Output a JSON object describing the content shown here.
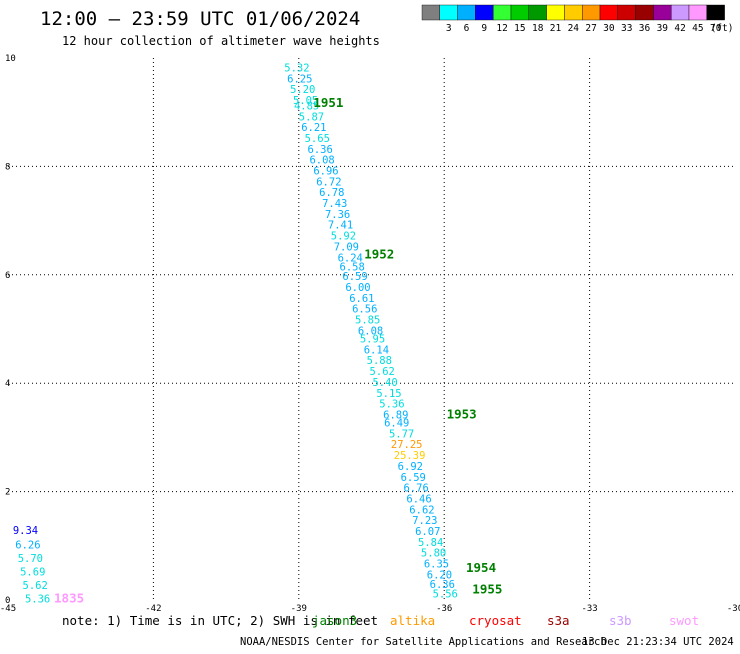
{
  "header": {
    "title": "12:00 — 23:59 UTC 01/06/2024",
    "subtitle": "12 hour collection of altimeter wave heights"
  },
  "color_scale": {
    "unit_label": "(ft)",
    "bins": [
      {
        "label": "",
        "color": "#7f7f7f"
      },
      {
        "label": "3",
        "color": "#00ffff"
      },
      {
        "label": "6",
        "color": "#00b0ff"
      },
      {
        "label": "9",
        "color": "#0000ff"
      },
      {
        "label": "12",
        "color": "#33ff33"
      },
      {
        "label": "15",
        "color": "#00cc00"
      },
      {
        "label": "18",
        "color": "#009900"
      },
      {
        "label": "21",
        "color": "#ffff00"
      },
      {
        "label": "24",
        "color": "#ffcc00"
      },
      {
        "label": "27",
        "color": "#ff9900"
      },
      {
        "label": "30",
        "color": "#ff0000"
      },
      {
        "label": "33",
        "color": "#cc0000"
      },
      {
        "label": "36",
        "color": "#990000"
      },
      {
        "label": "39",
        "color": "#990099"
      },
      {
        "label": "42",
        "color": "#cc99ff"
      },
      {
        "label": "45",
        "color": "#ff99ff"
      },
      {
        "label": "70",
        "color": "#000000"
      }
    ]
  },
  "chart_data": {
    "type": "scatter",
    "xlim": [
      -45,
      -30
    ],
    "ylim": [
      0,
      10
    ],
    "x_ticks": [
      {
        "value": -45,
        "label": "-45"
      },
      {
        "value": -42,
        "label": "-42"
      },
      {
        "value": -39,
        "label": "-39"
      },
      {
        "value": -36,
        "label": "-36"
      },
      {
        "value": -33,
        "label": "-33"
      },
      {
        "value": -30,
        "label": "-30"
      }
    ],
    "y_ticks": [
      {
        "value": 0,
        "label": "0"
      },
      {
        "value": 2,
        "label": "2"
      },
      {
        "value": 4,
        "label": "4"
      },
      {
        "value": 6,
        "label": "6"
      },
      {
        "value": 8,
        "label": "8"
      },
      {
        "value": 10,
        "label": "10"
      }
    ],
    "grid": true,
    "track1": {
      "points": [
        {
          "x": -39.3,
          "y": 9.75,
          "label": "5.32",
          "color": "#00dddd"
        },
        {
          "x": -39.24,
          "y": 9.55,
          "label": "6.25",
          "color": "#00b0ff"
        },
        {
          "x": -39.18,
          "y": 9.35,
          "label": "5.20",
          "color": "#00dddd"
        },
        {
          "x": -39.12,
          "y": 9.15,
          "label": "5.05",
          "color": "#00dddd"
        },
        {
          "x": -39.1,
          "y": 9.05,
          "label": "4.85",
          "color": "#00dddd"
        },
        {
          "x": -39.0,
          "y": 8.85,
          "label": "5.87",
          "color": "#00dddd"
        },
        {
          "x": -38.95,
          "y": 8.65,
          "label": "6.21",
          "color": "#00b0ff"
        },
        {
          "x": -38.88,
          "y": 8.45,
          "label": "5.65",
          "color": "#00dddd"
        },
        {
          "x": -38.82,
          "y": 8.25,
          "label": "6.36",
          "color": "#00b0ff"
        },
        {
          "x": -38.78,
          "y": 8.05,
          "label": "6.08",
          "color": "#00b0ff"
        },
        {
          "x": -38.7,
          "y": 7.85,
          "label": "6.96",
          "color": "#00b0ff"
        },
        {
          "x": -38.64,
          "y": 7.65,
          "label": "6.72",
          "color": "#00b0ff"
        },
        {
          "x": -38.58,
          "y": 7.45,
          "label": "6.78",
          "color": "#00b0ff"
        },
        {
          "x": -38.52,
          "y": 7.25,
          "label": "7.43",
          "color": "#00b0ff"
        },
        {
          "x": -38.46,
          "y": 7.05,
          "label": "7.36",
          "color": "#00b0ff"
        },
        {
          "x": -38.4,
          "y": 6.85,
          "label": "7.41",
          "color": "#00b0ff"
        },
        {
          "x": -38.34,
          "y": 6.65,
          "label": "5.92",
          "color": "#00dddd"
        },
        {
          "x": -38.28,
          "y": 6.45,
          "label": "7.09",
          "color": "#00b0ff"
        },
        {
          "x": -38.2,
          "y": 6.25,
          "label": "6.24",
          "color": "#00b0ff"
        },
        {
          "x": -38.16,
          "y": 6.08,
          "label": "6.58",
          "color": "#00b0ff"
        },
        {
          "x": -38.1,
          "y": 5.9,
          "label": "6.59",
          "color": "#00b0ff"
        },
        {
          "x": -38.04,
          "y": 5.7,
          "label": "6.00",
          "color": "#00b0ff"
        },
        {
          "x": -37.96,
          "y": 5.5,
          "label": "6.61",
          "color": "#00b0ff"
        },
        {
          "x": -37.9,
          "y": 5.3,
          "label": "6.56",
          "color": "#00b0ff"
        },
        {
          "x": -37.84,
          "y": 5.1,
          "label": "5.85",
          "color": "#00dddd"
        },
        {
          "x": -37.78,
          "y": 4.9,
          "label": "6.08",
          "color": "#00b0ff"
        },
        {
          "x": -37.74,
          "y": 4.75,
          "label": "5.95",
          "color": "#00dddd"
        },
        {
          "x": -37.66,
          "y": 4.55,
          "label": "6.14",
          "color": "#00b0ff"
        },
        {
          "x": -37.6,
          "y": 4.35,
          "label": "5.88",
          "color": "#00dddd"
        },
        {
          "x": -37.54,
          "y": 4.15,
          "label": "5.62",
          "color": "#00dddd"
        },
        {
          "x": -37.48,
          "y": 3.95,
          "label": "5.40",
          "color": "#00dddd"
        },
        {
          "x": -37.4,
          "y": 3.75,
          "label": "5.15",
          "color": "#00dddd"
        },
        {
          "x": -37.34,
          "y": 3.55,
          "label": "5.36",
          "color": "#00dddd"
        },
        {
          "x": -37.26,
          "y": 3.35,
          "label": "6.89",
          "color": "#00b0ff"
        },
        {
          "x": -37.24,
          "y": 3.2,
          "label": "6.49",
          "color": "#00b0ff"
        },
        {
          "x": -37.14,
          "y": 3.0,
          "label": "5.77",
          "color": "#00dddd"
        },
        {
          "x": -37.1,
          "y": 2.8,
          "label": "27.25",
          "color": "#ff9900"
        },
        {
          "x": -37.04,
          "y": 2.6,
          "label": "25.39",
          "color": "#ffcc00"
        },
        {
          "x": -36.96,
          "y": 2.4,
          "label": "6.92",
          "color": "#00b0ff"
        },
        {
          "x": -36.9,
          "y": 2.2,
          "label": "6.59",
          "color": "#00b0ff"
        },
        {
          "x": -36.84,
          "y": 2.0,
          "label": "6.76",
          "color": "#00b0ff"
        },
        {
          "x": -36.78,
          "y": 1.8,
          "label": "6.46",
          "color": "#00b0ff"
        },
        {
          "x": -36.72,
          "y": 1.6,
          "label": "6.62",
          "color": "#00b0ff"
        },
        {
          "x": -36.66,
          "y": 1.4,
          "label": "7.23",
          "color": "#00b0ff"
        },
        {
          "x": -36.6,
          "y": 1.2,
          "label": "6.07",
          "color": "#00b0ff"
        },
        {
          "x": -36.54,
          "y": 1.0,
          "label": "5.84",
          "color": "#00dddd"
        },
        {
          "x": -36.48,
          "y": 0.8,
          "label": "5.80",
          "color": "#00dddd"
        },
        {
          "x": -36.42,
          "y": 0.6,
          "label": "6.35",
          "color": "#00b0ff"
        },
        {
          "x": -36.36,
          "y": 0.4,
          "label": "6.20",
          "color": "#00b0ff"
        },
        {
          "x": -36.3,
          "y": 0.22,
          "label": "6.36",
          "color": "#00b0ff"
        },
        {
          "x": -36.24,
          "y": 0.05,
          "label": "5.56",
          "color": "#00dddd"
        }
      ],
      "time_labels": [
        {
          "x": -38.7,
          "y": 9.1,
          "label": "1951",
          "color": "#008000"
        },
        {
          "x": -37.65,
          "y": 6.3,
          "label": "1952",
          "color": "#008000"
        },
        {
          "x": -35.95,
          "y": 3.35,
          "label": "1953",
          "color": "#008000"
        },
        {
          "x": -35.55,
          "y": 0.52,
          "label": "1954",
          "color": "#008000"
        },
        {
          "x": -35.42,
          "y": 0.12,
          "label": "1955",
          "color": "#008000"
        }
      ]
    },
    "track2": {
      "points": [
        {
          "x": -44.9,
          "y": 1.22,
          "label": "9.34",
          "color": "#0000ff"
        },
        {
          "x": -44.85,
          "y": 0.95,
          "label": "6.26",
          "color": "#00b0ff"
        },
        {
          "x": -44.8,
          "y": 0.7,
          "label": "5.70",
          "color": "#00dddd"
        },
        {
          "x": -44.75,
          "y": 0.45,
          "label": "5.69",
          "color": "#00dddd"
        },
        {
          "x": -44.7,
          "y": 0.2,
          "label": "5.62",
          "color": "#00dddd"
        },
        {
          "x": -44.65,
          "y": -0.05,
          "label": "5.36",
          "color": "#00dddd"
        }
      ],
      "time_labels": [
        {
          "x": -44.05,
          "y": -0.05,
          "label": "1835",
          "color": "#ff99ff"
        }
      ]
    }
  },
  "footer": {
    "note": "note: 1) Time is in UTC; 2) SWH is in feet",
    "satellites": [
      {
        "name": "jason3",
        "color": "#008000"
      },
      {
        "name": "altika",
        "color": "#ff9900"
      },
      {
        "name": "cryosat",
        "color": "#ff0000"
      },
      {
        "name": "s3a",
        "color": "#990000"
      },
      {
        "name": "s3b",
        "color": "#cc99ff"
      },
      {
        "name": "swot",
        "color": "#ff99ff"
      }
    ],
    "credit": "NOAA/NESDIS Center for Satellite Applications and Research",
    "generated": "13 Dec 21:23:34 UTC 2024"
  }
}
